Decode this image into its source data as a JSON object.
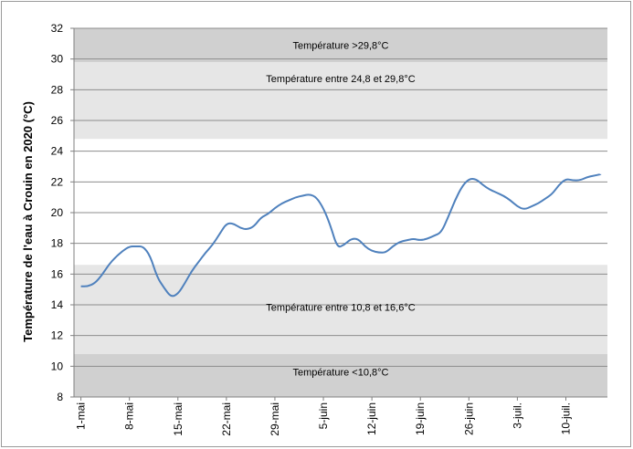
{
  "chart_data": {
    "type": "line",
    "title": "",
    "xlabel": "",
    "ylabel": "Température de l'eau à Crouin en 2020  (°C)",
    "ylim": [
      8,
      32
    ],
    "yticks": [
      8,
      10,
      12,
      14,
      16,
      18,
      20,
      22,
      24,
      26,
      28,
      30,
      32
    ],
    "grid": "horizontal",
    "legend": "none",
    "x_tick_labels": [
      {
        "label": "1-mai",
        "day": 1
      },
      {
        "label": "8-mai",
        "day": 8
      },
      {
        "label": "15-mai",
        "day": 15
      },
      {
        "label": "22-mai",
        "day": 22
      },
      {
        "label": "29-mai",
        "day": 29
      },
      {
        "label": "5-juin",
        "day": 36
      },
      {
        "label": "12-juin",
        "day": 43
      },
      {
        "label": "19-juin",
        "day": 50
      },
      {
        "label": "26-juin",
        "day": 57
      },
      {
        "label": "3-juil.",
        "day": 64
      },
      {
        "label": "10-juil.",
        "day": 71
      }
    ],
    "bands": [
      {
        "label": "Température >29,8°C",
        "from": 29.8,
        "to": 32,
        "color": "#d0d0d0"
      },
      {
        "label": "Température entre  24,8 et 29,8°C",
        "from": 24.8,
        "to": 29.8,
        "color": "#e6e6e6"
      },
      {
        "label": "Température entre 10,8 et 16,6°C",
        "from": 10.8,
        "to": 16.6,
        "color": "#e6e6e6"
      },
      {
        "label": "Température <10,8°C",
        "from": 8,
        "to": 10.8,
        "color": "#d0d0d0"
      }
    ],
    "series": [
      {
        "color": "#4f81bd",
        "x": [
          1,
          2,
          3,
          4,
          5,
          6,
          7,
          8,
          9,
          10,
          11,
          12,
          13,
          14,
          15,
          16,
          17,
          18,
          19,
          20,
          21,
          22,
          23,
          24,
          25,
          26,
          27,
          28,
          29,
          30,
          31,
          32,
          33,
          34,
          35,
          36,
          37,
          38,
          39,
          40,
          41,
          42,
          43,
          44,
          45,
          46,
          47,
          48,
          49,
          50,
          51,
          52,
          53,
          54,
          55,
          56,
          57,
          58,
          59,
          60,
          61,
          62,
          63,
          64,
          65,
          66,
          67,
          68,
          69,
          70,
          71,
          72,
          73,
          74,
          75,
          76
        ],
        "values": [
          15.2,
          15.2,
          15.4,
          15.9,
          16.6,
          17.1,
          17.5,
          17.8,
          17.8,
          17.8,
          17.2,
          15.8,
          15.1,
          14.5,
          14.7,
          15.4,
          16.2,
          16.8,
          17.4,
          17.9,
          18.6,
          19.3,
          19.3,
          19.0,
          18.9,
          19.1,
          19.7,
          19.9,
          20.3,
          20.6,
          20.8,
          21.0,
          21.1,
          21.2,
          21.0,
          20.3,
          19.2,
          17.7,
          17.9,
          18.3,
          18.3,
          17.8,
          17.5,
          17.4,
          17.4,
          17.8,
          18.1,
          18.2,
          18.3,
          18.2,
          18.3,
          18.5,
          18.7,
          19.7,
          20.8,
          21.7,
          22.2,
          22.2,
          21.8,
          21.5,
          21.3,
          21.1,
          20.8,
          20.4,
          20.2,
          20.4,
          20.6,
          20.9,
          21.2,
          21.8,
          22.2,
          22.1,
          22.1,
          22.3,
          22.4,
          22.5
        ]
      }
    ]
  }
}
